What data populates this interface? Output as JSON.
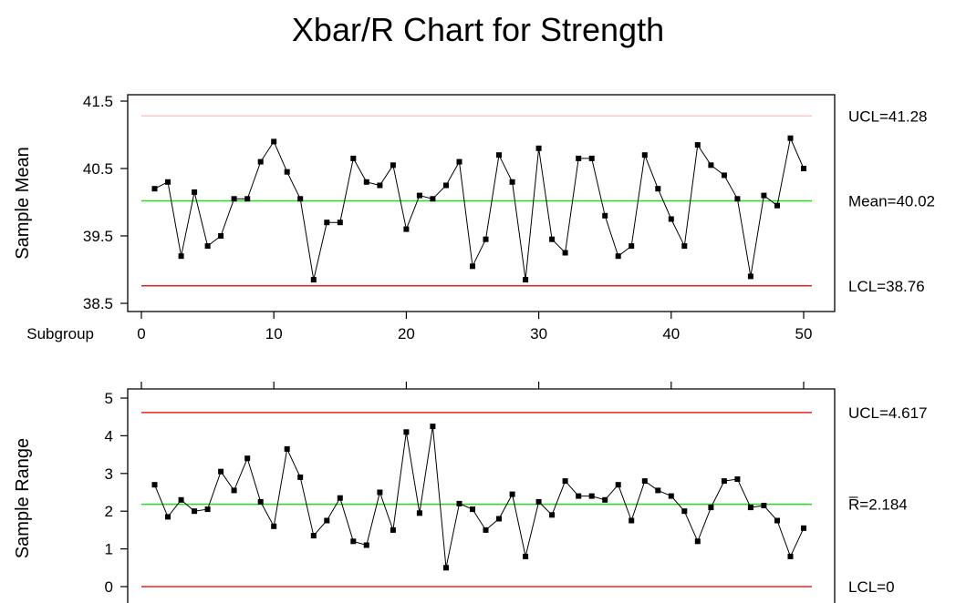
{
  "title": "Xbar/R Chart for Strength",
  "colors": {
    "center_line": "#22dd22",
    "control_limit": "#ee2222",
    "ucl_xbar": "#ffc8c8",
    "data": "#000000"
  },
  "chart_data": [
    {
      "type": "line",
      "name": "xbar",
      "ylabel": "Sample Mean",
      "xlabel": "Subgroup",
      "xlim": [
        0,
        50
      ],
      "xticks": [
        "0",
        "10",
        "20",
        "30",
        "40",
        "50"
      ],
      "ylim": [
        38.5,
        41.5
      ],
      "yticks": [
        "38.5",
        "39.5",
        "40.5",
        "41.5"
      ],
      "limits": {
        "ucl": 41.28,
        "center": 40.02,
        "lcl": 38.76
      },
      "limit_labels": {
        "ucl": "UCL=41.28",
        "center": "Mean=40.02",
        "lcl": "LCL=38.76"
      },
      "x": [
        1,
        2,
        3,
        4,
        5,
        6,
        7,
        8,
        9,
        10,
        11,
        12,
        13,
        14,
        15,
        16,
        17,
        18,
        19,
        20,
        21,
        22,
        23,
        24,
        25,
        26,
        27,
        28,
        29,
        30,
        31,
        32,
        33,
        34,
        35,
        36,
        37,
        38,
        39,
        40,
        41,
        42,
        43,
        44,
        45,
        46,
        47,
        48,
        49,
        50
      ],
      "values": [
        40.2,
        40.3,
        39.2,
        40.15,
        39.35,
        39.5,
        40.05,
        40.05,
        40.6,
        40.9,
        40.45,
        40.05,
        38.85,
        39.7,
        39.7,
        40.65,
        40.3,
        40.25,
        40.55,
        39.6,
        40.1,
        40.05,
        40.25,
        40.6,
        39.05,
        39.45,
        40.7,
        40.3,
        38.85,
        40.8,
        39.45,
        39.25,
        40.65,
        40.65,
        39.8,
        39.2,
        39.35,
        40.7,
        40.2,
        39.75,
        39.35,
        40.85,
        40.55,
        40.4,
        40.05,
        38.9,
        40.1,
        39.95,
        40.95,
        40.5
      ],
      "grid": false
    },
    {
      "type": "line",
      "name": "range",
      "ylabel": "Sample Range",
      "xlim": [
        0,
        50
      ],
      "ylim": [
        0,
        5
      ],
      "yticks": [
        "0",
        "1",
        "2",
        "3",
        "4",
        "5"
      ],
      "limits": {
        "ucl": 4.617,
        "center": 2.184,
        "lcl": 0
      },
      "limit_labels": {
        "ucl": "UCL=4.617",
        "center": "R̅=2.184",
        "lcl": "LCL=0"
      },
      "x": [
        1,
        2,
        3,
        4,
        5,
        6,
        7,
        8,
        9,
        10,
        11,
        12,
        13,
        14,
        15,
        16,
        17,
        18,
        19,
        20,
        21,
        22,
        23,
        24,
        25,
        26,
        27,
        28,
        29,
        30,
        31,
        32,
        33,
        34,
        35,
        36,
        37,
        38,
        39,
        40,
        41,
        42,
        43,
        44,
        45,
        46,
        47,
        48,
        49,
        50
      ],
      "values": [
        2.7,
        1.85,
        2.3,
        2.0,
        2.05,
        3.05,
        2.55,
        3.4,
        2.25,
        1.6,
        3.65,
        2.9,
        1.35,
        1.75,
        2.35,
        1.2,
        1.1,
        2.5,
        1.5,
        4.1,
        1.95,
        4.25,
        0.5,
        2.2,
        2.05,
        1.5,
        1.8,
        2.45,
        0.8,
        2.25,
        1.9,
        2.8,
        2.4,
        2.4,
        2.3,
        2.7,
        1.75,
        2.8,
        2.55,
        2.4,
        2.0,
        1.2,
        2.1,
        2.8,
        2.85,
        2.1,
        2.15,
        1.75,
        0.8,
        1.55
      ],
      "grid": false
    }
  ]
}
